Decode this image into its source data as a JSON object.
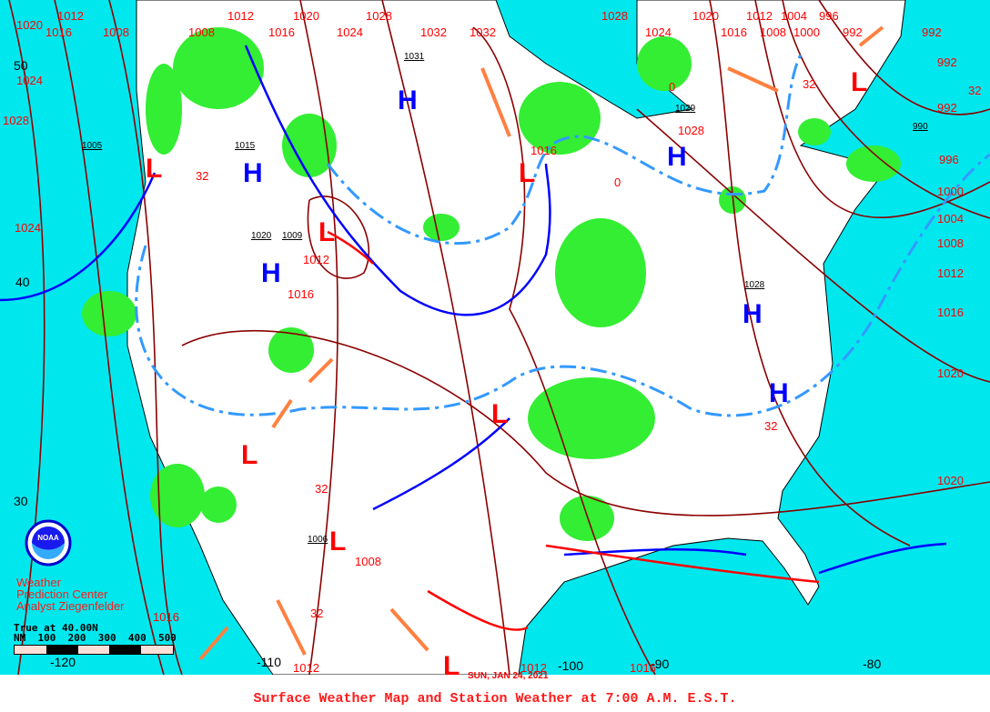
{
  "caption": "Surface Weather Map and Station Weather at 7:00 A.M. E.S.T.",
  "date": "SUN, JAN 24, 2021",
  "credit": {
    "line1": "Weather",
    "line2": "Prediction Center",
    "line3": "Analyst Ziegenfelder",
    "logo_text": "NOAA"
  },
  "scale": {
    "title": "True at 40.00N",
    "units": "NM",
    "ticks": [
      "100",
      "200",
      "300",
      "400",
      "500"
    ]
  },
  "latitudes": [
    "50",
    "40",
    "30"
  ],
  "longitudes": [
    "-120",
    "-110",
    "-100",
    "-90",
    "-80"
  ],
  "highs": [
    "H",
    "H",
    "H",
    "H",
    "H",
    "H"
  ],
  "lows": [
    "L",
    "L",
    "L",
    "L",
    "L",
    "L",
    "L",
    "L"
  ],
  "isobar_labels": [
    "1020",
    "1016",
    "1012",
    "1008",
    "1008",
    "1012",
    "1016",
    "1020",
    "1024",
    "1028",
    "1032",
    "1032",
    "1028",
    "1024",
    "1020",
    "1016",
    "1012",
    "1008",
    "1004",
    "1000",
    "996",
    "992",
    "992",
    "992",
    "992",
    "996",
    "1000",
    "1004",
    "1008",
    "1012",
    "1016",
    "1020",
    "1020",
    "1024",
    "1028",
    "1024",
    "1016",
    "1012",
    "1012",
    "1016",
    "1008",
    "1012",
    "1016",
    "1016",
    "1028",
    "32",
    "32",
    "32",
    "32",
    "32",
    "32",
    "0",
    "0"
  ],
  "pressure_boxes": [
    "1031",
    "1015",
    "1020",
    "1009",
    "1005",
    "1029",
    "990",
    "1028",
    "1006"
  ],
  "colors": {
    "ocean": "#00e8ee",
    "land": "#ffffff",
    "precip": "#33ee33",
    "isobar": "#8b0000",
    "cold_front": "#0000ff",
    "warm_front": "#ff0000",
    "label": "#ff0000",
    "freezing_line": "#3399ff",
    "trough": "#ff8040"
  }
}
